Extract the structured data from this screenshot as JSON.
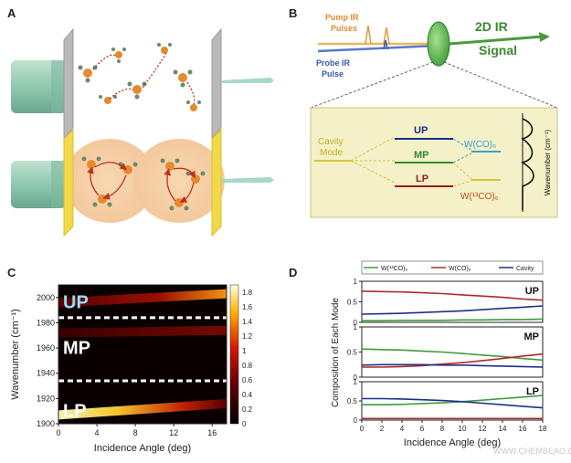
{
  "panels": {
    "a": {
      "letter": "A"
    },
    "b": {
      "letter": "B",
      "pump_label_l1": "Pump IR",
      "pump_label_l2": "Pulses",
      "probe_label_l1": "Probe IR",
      "probe_label_l2": "Pulse",
      "signal_l1": "2D IR",
      "signal_l2": "Signal",
      "cavity_l1": "Cavity",
      "cavity_l2": "Mode",
      "up": "UP",
      "mp": "MP",
      "lp": "LP",
      "wco": "W(CO)₆",
      "w13co": "W(¹³CO)₆",
      "wavenumber_axis": "Wavenumber (cm⁻¹)"
    },
    "c": {
      "letter": "C"
    },
    "d": {
      "letter": "D"
    }
  },
  "watermark": "WWW.CHEMBEAO.COM",
  "colors": {
    "up": "#1a2a8a",
    "mp": "#2e8a2e",
    "lp": "#a01a1a",
    "cavity": "#d9c43a",
    "signal": "#3a8a2e",
    "pump": "#e0a040",
    "probe": "#3a56b0",
    "wco": "#3aa0c8",
    "green_series": "#3f9a3f",
    "red_series": "#b02a2a",
    "blue_series": "#1f2f8a"
  },
  "chart_data": [
    {
      "type": "heatmap",
      "panel": "C",
      "xlabel": "Incidence Angle (deg)",
      "ylabel": "Wavenumber (cm⁻¹)",
      "xlim": [
        0,
        17.5
      ],
      "ylim": [
        1900,
        2010
      ],
      "xticks": [
        0,
        4,
        8,
        12,
        16
      ],
      "yticks": [
        1900,
        1920,
        1940,
        1960,
        1980,
        2000
      ],
      "colorbar": {
        "ticks": [
          0,
          0.2,
          0.4,
          0.6,
          0.8,
          1,
          1.2,
          1.4,
          1.6,
          1.8
        ],
        "range": [
          0,
          1.9
        ]
      },
      "bands": [
        {
          "label": "UP",
          "wavenumber_start": 1996,
          "wavenumber_end": 2003,
          "intensity_start": 0.6,
          "intensity_end": 1.7
        },
        {
          "label": "MP",
          "wavenumber_start": 1972,
          "wavenumber_end": 1974,
          "intensity_start": 0.5,
          "intensity_end": 0.9
        },
        {
          "label": "LP",
          "wavenumber_start": 1907,
          "wavenumber_end": 1916,
          "intensity_start": 1.8,
          "intensity_end": 0.5
        }
      ],
      "dividers": [
        1984,
        1934
      ],
      "band_labels": [
        "UP",
        "MP",
        "LP"
      ]
    },
    {
      "type": "line",
      "panel": "D",
      "xlabel": "Incidence Angle (deg)",
      "ylabel": "Composition of Each Mode",
      "xticks": [
        0,
        2,
        4,
        6,
        8,
        10,
        12,
        14,
        16,
        18
      ],
      "xlim": [
        0,
        18
      ],
      "ylim": [
        0,
        1
      ],
      "yticks": [
        0,
        0.5,
        1
      ],
      "legend": [
        "W(¹³CO)₆",
        "W(CO)₆",
        "Cavity"
      ],
      "x": [
        0,
        2,
        4,
        6,
        8,
        10,
        12,
        14,
        16,
        18
      ],
      "subplots": [
        {
          "label": "UP",
          "series": [
            {
              "name": "W(¹³CO)₆",
              "values": [
                0.04,
                0.04,
                0.05,
                0.05,
                0.05,
                0.06,
                0.06,
                0.07,
                0.07,
                0.08
              ]
            },
            {
              "name": "W(CO)₆",
              "values": [
                0.76,
                0.75,
                0.74,
                0.72,
                0.7,
                0.67,
                0.64,
                0.61,
                0.57,
                0.54
              ]
            },
            {
              "name": "Cavity",
              "values": [
                0.2,
                0.21,
                0.22,
                0.24,
                0.26,
                0.28,
                0.31,
                0.34,
                0.37,
                0.4
              ]
            }
          ]
        },
        {
          "label": "MP",
          "series": [
            {
              "name": "W(¹³CO)₆",
              "values": [
                0.56,
                0.55,
                0.54,
                0.52,
                0.5,
                0.47,
                0.44,
                0.41,
                0.37,
                0.34
              ]
            },
            {
              "name": "W(CO)₆",
              "values": [
                0.2,
                0.2,
                0.21,
                0.23,
                0.26,
                0.29,
                0.33,
                0.37,
                0.42,
                0.46
              ]
            },
            {
              "name": "Cavity",
              "values": [
                0.24,
                0.25,
                0.25,
                0.25,
                0.24,
                0.24,
                0.23,
                0.22,
                0.21,
                0.2
              ]
            }
          ]
        },
        {
          "label": "LP",
          "series": [
            {
              "name": "W(¹³CO)₆",
              "values": [
                0.4,
                0.4,
                0.41,
                0.43,
                0.45,
                0.48,
                0.52,
                0.56,
                0.6,
                0.64
              ]
            },
            {
              "name": "W(CO)₆",
              "values": [
                0.04,
                0.04,
                0.04,
                0.04,
                0.04,
                0.04,
                0.04,
                0.04,
                0.04,
                0.04
              ]
            },
            {
              "name": "Cavity",
              "values": [
                0.56,
                0.56,
                0.55,
                0.53,
                0.51,
                0.48,
                0.44,
                0.4,
                0.36,
                0.32
              ]
            }
          ]
        }
      ]
    }
  ]
}
